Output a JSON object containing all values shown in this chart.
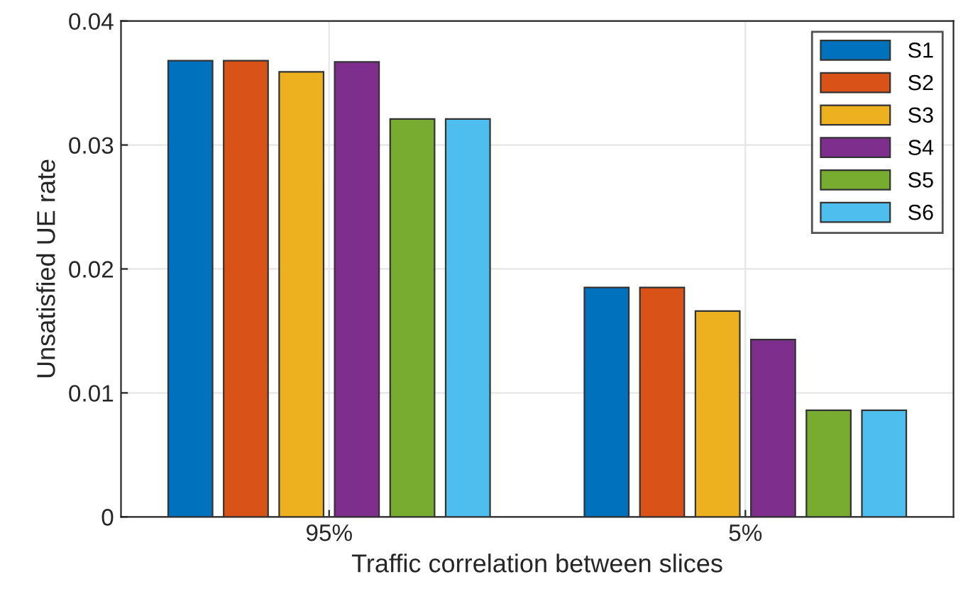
{
  "chart_data": {
    "type": "bar",
    "xlabel": "Traffic correlation between slices",
    "ylabel": "Unsatisfied UE rate",
    "categories": [
      "95%",
      "5%"
    ],
    "series": [
      {
        "name": "S1",
        "color": "#0072bd",
        "values": [
          0.0368,
          0.0185
        ]
      },
      {
        "name": "S2",
        "color": "#d95319",
        "values": [
          0.0368,
          0.0185
        ]
      },
      {
        "name": "S3",
        "color": "#edb120",
        "values": [
          0.0359,
          0.0166
        ]
      },
      {
        "name": "S4",
        "color": "#7e2f8e",
        "values": [
          0.0367,
          0.0143
        ]
      },
      {
        "name": "S5",
        "color": "#77ac30",
        "values": [
          0.0321,
          0.0086
        ]
      },
      {
        "name": "S6",
        "color": "#4dbeee",
        "values": [
          0.0321,
          0.0086
        ]
      }
    ],
    "ylim": [
      0,
      0.04
    ],
    "yticks": [
      0,
      0.01,
      0.02,
      0.03,
      0.04
    ],
    "grid": true,
    "legend": "top right"
  }
}
